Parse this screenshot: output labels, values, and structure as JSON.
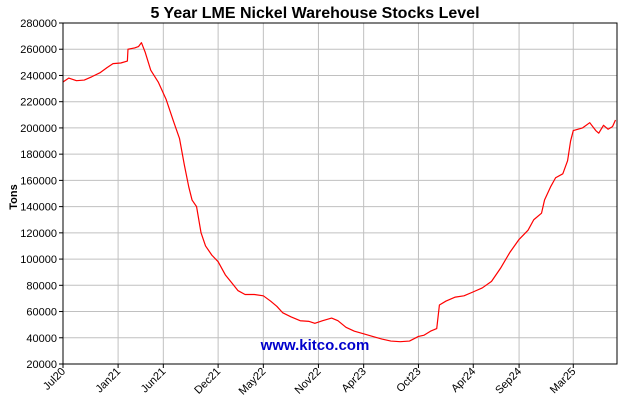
{
  "chart_data": {
    "type": "line",
    "title": "5 Year LME Nickel Warehouse Stocks Level",
    "ylabel": "Tons",
    "xlabel": "",
    "ylim": [
      20000,
      280000
    ],
    "ytick_step": 20000,
    "yticks": [
      "20000",
      "40000",
      "60000",
      "80000",
      "100000",
      "120000",
      "140000",
      "160000",
      "180000",
      "200000",
      "220000",
      "240000",
      "260000",
      "280000"
    ],
    "xlim": [
      "2020-07-01",
      "2025-07-25"
    ],
    "xticks": [
      {
        "date": "2020-07-01",
        "label": "Jul20"
      },
      {
        "date": "2021-01-01",
        "label": "Jan21"
      },
      {
        "date": "2021-06-01",
        "label": "Jun21"
      },
      {
        "date": "2021-12-01",
        "label": "Dec21"
      },
      {
        "date": "2022-05-01",
        "label": "May22"
      },
      {
        "date": "2022-11-01",
        "label": "Nov22"
      },
      {
        "date": "2023-04-01",
        "label": "Apr23"
      },
      {
        "date": "2023-10-01",
        "label": "Oct23"
      },
      {
        "date": "2024-04-01",
        "label": "Apr24"
      },
      {
        "date": "2024-09-01",
        "label": "Sep24"
      },
      {
        "date": "2025-03-01",
        "label": "Mar25"
      }
    ],
    "grid": true,
    "series": [
      {
        "color": "#ff0000",
        "points": [
          [
            "2020-07-01",
            235000
          ],
          [
            "2020-07-20",
            238000
          ],
          [
            "2020-08-15",
            236000
          ],
          [
            "2020-09-10",
            236500
          ],
          [
            "2020-10-05",
            239000
          ],
          [
            "2020-11-01",
            242000
          ],
          [
            "2020-11-25",
            246000
          ],
          [
            "2020-12-15",
            249000
          ],
          [
            "2021-01-10",
            249500
          ],
          [
            "2021-02-01",
            251000
          ],
          [
            "2021-02-03",
            260000
          ],
          [
            "2021-02-25",
            261000
          ],
          [
            "2021-03-10",
            262000
          ],
          [
            "2021-03-20",
            265000
          ],
          [
            "2021-04-01",
            258000
          ],
          [
            "2021-04-20",
            244000
          ],
          [
            "2021-05-15",
            235000
          ],
          [
            "2021-06-10",
            222000
          ],
          [
            "2021-07-05",
            205000
          ],
          [
            "2021-07-25",
            192000
          ],
          [
            "2021-08-10",
            172000
          ],
          [
            "2021-08-25",
            155000
          ],
          [
            "2021-09-05",
            145000
          ],
          [
            "2021-09-20",
            140000
          ],
          [
            "2021-10-05",
            120000
          ],
          [
            "2021-10-20",
            110000
          ],
          [
            "2021-11-10",
            103000
          ],
          [
            "2021-12-01",
            98000
          ],
          [
            "2021-12-25",
            88000
          ],
          [
            "2022-01-15",
            82000
          ],
          [
            "2022-02-05",
            76000
          ],
          [
            "2022-03-01",
            73000
          ],
          [
            "2022-04-01",
            73000
          ],
          [
            "2022-05-01",
            72000
          ],
          [
            "2022-05-25",
            68000
          ],
          [
            "2022-06-15",
            64000
          ],
          [
            "2022-07-05",
            59000
          ],
          [
            "2022-08-01",
            56000
          ],
          [
            "2022-09-01",
            53000
          ],
          [
            "2022-10-01",
            52500
          ],
          [
            "2022-10-20",
            51000
          ],
          [
            "2022-11-15",
            53000
          ],
          [
            "2022-12-15",
            55000
          ],
          [
            "2023-01-05",
            53000
          ],
          [
            "2023-02-01",
            48000
          ],
          [
            "2023-03-01",
            45000
          ],
          [
            "2023-04-01",
            43000
          ],
          [
            "2023-05-01",
            41000
          ],
          [
            "2023-06-01",
            39000
          ],
          [
            "2023-07-01",
            37500
          ],
          [
            "2023-08-01",
            37000
          ],
          [
            "2023-09-01",
            37500
          ],
          [
            "2023-10-01",
            41000
          ],
          [
            "2023-10-20",
            42000
          ],
          [
            "2023-11-10",
            45000
          ],
          [
            "2023-12-01",
            47000
          ],
          [
            "2023-12-10",
            65000
          ],
          [
            "2024-01-01",
            68000
          ],
          [
            "2024-02-01",
            71000
          ],
          [
            "2024-03-01",
            72000
          ],
          [
            "2024-04-01",
            75000
          ],
          [
            "2024-05-01",
            78000
          ],
          [
            "2024-06-01",
            83000
          ],
          [
            "2024-07-01",
            93000
          ],
          [
            "2024-08-01",
            105000
          ],
          [
            "2024-09-01",
            115000
          ],
          [
            "2024-10-01",
            122000
          ],
          [
            "2024-10-20",
            130000
          ],
          [
            "2024-11-15",
            135000
          ],
          [
            "2024-11-25",
            145000
          ],
          [
            "2024-12-15",
            155000
          ],
          [
            "2025-01-01",
            162000
          ],
          [
            "2025-01-25",
            165000
          ],
          [
            "2025-02-10",
            175000
          ],
          [
            "2025-02-20",
            190000
          ],
          [
            "2025-03-01",
            198000
          ],
          [
            "2025-04-01",
            200000
          ],
          [
            "2025-04-25",
            204000
          ],
          [
            "2025-05-15",
            198000
          ],
          [
            "2025-05-25",
            196000
          ],
          [
            "2025-06-10",
            202000
          ],
          [
            "2025-06-25",
            199000
          ],
          [
            "2025-07-10",
            201000
          ],
          [
            "2025-07-20",
            206000
          ]
        ]
      }
    ],
    "watermark": "www.kitco.com",
    "colors": {
      "line": "#ff0000",
      "grid": "#c0c0c0",
      "watermark": "#0000cc",
      "axis": "#000000"
    }
  }
}
